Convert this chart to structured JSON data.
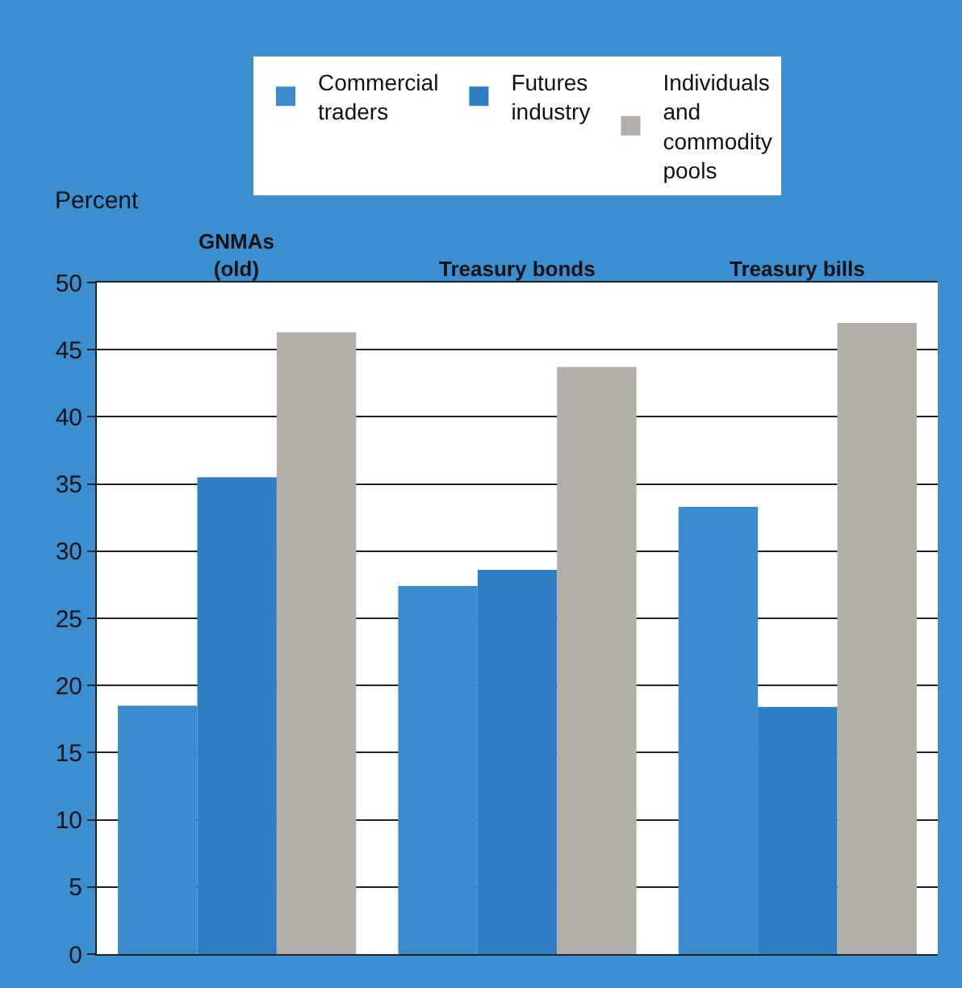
{
  "chart_data": {
    "type": "bar",
    "ylabel": "Percent",
    "categories": [
      "GNMAs\n(old)",
      "Treasury bonds",
      "Treasury bills"
    ],
    "series": [
      {
        "name": "Commercial\ntraders",
        "color": "#3a8ccf",
        "values": [
          18.5,
          27.4,
          33.3
        ]
      },
      {
        "name": "Futures\nindustry",
        "color": "#2f7fc4",
        "values": [
          35.5,
          28.6,
          18.4
        ]
      },
      {
        "name": "Individuals\nand\ncommodity\npools",
        "color": "#b3afa8",
        "values": [
          46.3,
          43.7,
          47.0
        ]
      }
    ],
    "ylim": [
      0,
      50
    ],
    "yticks": [
      0,
      5,
      10,
      15,
      20,
      25,
      30,
      35,
      40,
      45,
      50
    ],
    "grid": "y",
    "legend": "top"
  }
}
